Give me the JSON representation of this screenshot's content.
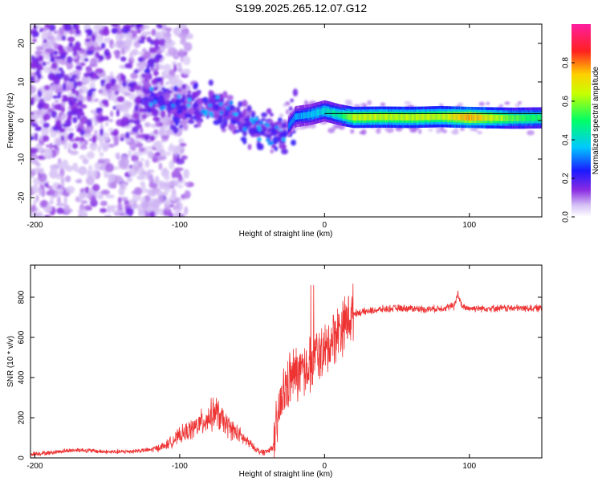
{
  "title": "S199.2025.265.12.07.G12",
  "chart_data": [
    {
      "type": "heatmap",
      "name": "spectrogram",
      "xlabel": "Height of straight line (km)",
      "ylabel": "Frequency (Hz)",
      "xlim": [
        -203,
        150
      ],
      "ylim": [
        -25,
        25
      ],
      "xticks": [
        -200,
        -100,
        0,
        100
      ],
      "yticks": [
        -20,
        -10,
        0,
        10,
        20
      ],
      "colorbar": {
        "label": "Normalized spectral amplitude",
        "range": [
          0,
          1
        ],
        "ticks": [
          "0.0",
          "0.2",
          "0.4",
          "0.6",
          "0.8"
        ],
        "tick_values": [
          0.0,
          0.2,
          0.4,
          0.6,
          0.8
        ]
      },
      "reference_line_hz": 1.8,
      "ridge": [
        {
          "x": -115,
          "f": 6,
          "a": 0.35
        },
        {
          "x": -105,
          "f": 4,
          "a": 0.3
        },
        {
          "x": -95,
          "f": 3,
          "a": 0.3
        },
        {
          "x": -80,
          "f": 4,
          "a": 0.3
        },
        {
          "x": -65,
          "f": 2,
          "a": 0.3
        },
        {
          "x": -55,
          "f": 0,
          "a": 0.35
        },
        {
          "x": -45,
          "f": -2,
          "a": 0.3
        },
        {
          "x": -38,
          "f": -3,
          "a": 0.35
        },
        {
          "x": -28,
          "f": -3,
          "a": 0.3
        },
        {
          "x": -20,
          "f": 1,
          "a": 0.35
        },
        {
          "x": -10,
          "f": 1.5,
          "a": 0.4
        },
        {
          "x": 0,
          "f": 2.5,
          "a": 0.45
        },
        {
          "x": 10,
          "f": 1.5,
          "a": 0.5
        },
        {
          "x": 20,
          "f": 0.8,
          "a": 0.7
        },
        {
          "x": 40,
          "f": 0.9,
          "a": 0.7
        },
        {
          "x": 60,
          "f": 0.8,
          "a": 0.7
        },
        {
          "x": 80,
          "f": 1.0,
          "a": 0.7
        },
        {
          "x": 100,
          "f": 0.8,
          "a": 0.85
        },
        {
          "x": 130,
          "f": 0.6,
          "a": 0.6
        },
        {
          "x": 150,
          "f": 0.7,
          "a": 0.55
        }
      ]
    },
    {
      "type": "line",
      "name": "snr",
      "xlabel": "Height of straight line (km)",
      "ylabel": "SNR (10 * v/v)",
      "xlim": [
        -203,
        150
      ],
      "ylim": [
        0,
        960
      ],
      "xticks": [
        -200,
        -100,
        0,
        100
      ],
      "yticks": [
        0,
        200,
        400,
        600,
        800
      ],
      "color": "#ee3333",
      "series": [
        {
          "name": "SNR",
          "x": [
            -203,
            -190,
            -180,
            -170,
            -160,
            -150,
            -140,
            -130,
            -120,
            -110,
            -100,
            -90,
            -80,
            -75,
            -70,
            -60,
            -50,
            -45,
            -40,
            -35,
            -30,
            -25,
            -20,
            -15,
            -10,
            -5,
            0,
            5,
            10,
            15,
            20,
            30,
            40,
            50,
            60,
            70,
            80,
            85,
            90,
            92,
            95,
            100,
            110,
            120,
            130,
            140,
            150
          ],
          "values": [
            20,
            25,
            35,
            40,
            35,
            30,
            30,
            35,
            40,
            60,
            110,
            150,
            200,
            230,
            180,
            120,
            60,
            30,
            30,
            60,
            280,
            380,
            420,
            430,
            470,
            520,
            520,
            590,
            640,
            680,
            720,
            730,
            740,
            745,
            745,
            740,
            745,
            750,
            760,
            820,
            750,
            745,
            745,
            745,
            745,
            745,
            745
          ]
        }
      ]
    }
  ]
}
